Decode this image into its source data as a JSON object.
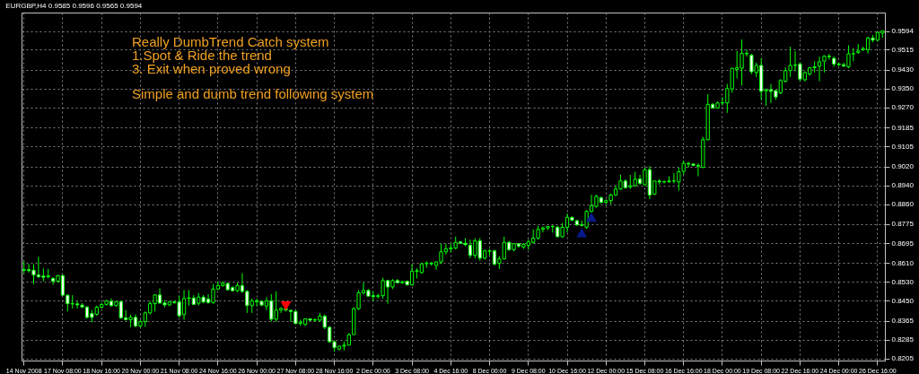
{
  "chart_data": {
    "type": "candlestick",
    "title": "EURGBP,H4  0.9585 0.9596 0.9565 0.9594",
    "color": "#00ff00",
    "annotations": [
      "Really DumbTrend Catch system",
      "1.Spot & Ride the trend",
      "3. Exit when proved wrong",
      "Simple and dumb trend following system"
    ],
    "categories": [
      "14 Nov 2008",
      null,
      null,
      null,
      null,
      null,
      null,
      null,
      "17 Nov 08:00",
      null,
      null,
      null,
      null,
      null,
      null,
      null,
      "18 Nov 16:00",
      null,
      null,
      null,
      null,
      null,
      null,
      null,
      "20 Nov 00:00",
      null,
      null,
      null,
      null,
      null,
      null,
      null,
      "21 Nov 08:00",
      null,
      null,
      null,
      null,
      null,
      null,
      null,
      "24 Nov 16:00",
      null,
      null,
      null,
      null,
      null,
      null,
      null,
      "26 Nov 00:00",
      null,
      null,
      null,
      null,
      null,
      null,
      null,
      "27 Nov 08:00",
      null,
      null,
      null,
      null,
      null,
      null,
      null,
      "28 Nov 16:00",
      null,
      null,
      null,
      null,
      null,
      null,
      null,
      "2 Dec 00:00",
      null,
      null,
      null,
      null,
      null,
      null,
      null,
      "3 Dec 08:00",
      null,
      null,
      null,
      null,
      null,
      null,
      null,
      "4 Dec 16:00",
      null,
      null,
      null,
      null,
      null,
      null,
      null,
      "8 Dec 00:00",
      null,
      null,
      null,
      null,
      null,
      null,
      null,
      "9 Dec 08:00",
      null,
      null,
      null,
      null,
      null,
      null,
      null,
      "10 Dec 16:00",
      null,
      null,
      null,
      null,
      null,
      null,
      null,
      "12 Dec 00:00",
      null,
      null,
      null,
      null,
      null,
      null,
      null,
      "15 Dec 08:00",
      null,
      null,
      null,
      null,
      null,
      null,
      null,
      "16 Dec 16:00",
      null,
      null,
      null,
      null,
      null,
      null,
      null,
      "18 Dec 00:00",
      null,
      null,
      null,
      null,
      null,
      null,
      null,
      "19 Dec 08:00",
      null,
      null,
      null,
      null,
      null,
      null,
      null,
      "22 Dec 16:00",
      null,
      null,
      null,
      null,
      null,
      null,
      null,
      "24 Dec 00:00",
      null,
      null,
      null,
      null,
      null,
      null,
      null,
      "26 Dec 16:00",
      null
    ],
    "ohlc": [
      [
        0.8582,
        0.8618,
        0.8567,
        0.858
      ],
      [
        0.8582,
        0.8606,
        0.857,
        0.8578
      ],
      [
        0.858,
        0.8606,
        0.8521,
        0.856
      ],
      [
        0.856,
        0.8637,
        0.8548,
        0.8552
      ],
      [
        0.8555,
        0.8588,
        0.8533,
        0.855
      ],
      [
        0.8552,
        0.8585,
        0.8545,
        0.8556
      ],
      [
        0.8545,
        0.8551,
        0.8518,
        0.8533
      ],
      [
        0.8533,
        0.856,
        0.8527,
        0.8557
      ],
      [
        0.8557,
        0.8561,
        0.8472,
        0.8474
      ],
      [
        0.8474,
        0.8478,
        0.8405,
        0.8438
      ],
      [
        0.8438,
        0.8474,
        0.8418,
        0.8437
      ],
      [
        0.8437,
        0.845,
        0.8418,
        0.8433
      ],
      [
        0.8432,
        0.844,
        0.842,
        0.8424
      ],
      [
        0.8424,
        0.8427,
        0.8374,
        0.838
      ],
      [
        0.8396,
        0.8411,
        0.8359,
        0.838
      ],
      [
        0.8393,
        0.843,
        0.8387,
        0.8423
      ],
      [
        0.8423,
        0.8442,
        0.8418,
        0.8435
      ],
      [
        0.8435,
        0.8454,
        0.843,
        0.845
      ],
      [
        0.8448,
        0.846,
        0.8425,
        0.843
      ],
      [
        0.843,
        0.8448,
        0.8425,
        0.8447
      ],
      [
        0.8447,
        0.845,
        0.8374,
        0.8378
      ],
      [
        0.8378,
        0.8411,
        0.8367,
        0.837
      ],
      [
        0.837,
        0.8392,
        0.8338,
        0.838
      ],
      [
        0.838,
        0.8392,
        0.8338,
        0.8344
      ],
      [
        0.8344,
        0.8369,
        0.8338,
        0.8362
      ],
      [
        0.8362,
        0.8405,
        0.834,
        0.8399
      ],
      [
        0.8399,
        0.8448,
        0.8393,
        0.8438
      ],
      [
        0.8438,
        0.8478,
        0.8405,
        0.8475
      ],
      [
        0.8475,
        0.8503,
        0.8438,
        0.8441
      ],
      [
        0.8441,
        0.8454,
        0.8423,
        0.8433
      ],
      [
        0.8433,
        0.845,
        0.8427,
        0.8445
      ],
      [
        0.8445,
        0.8452,
        0.8438,
        0.8442
      ],
      [
        0.8445,
        0.8472,
        0.838,
        0.8387
      ],
      [
        0.8392,
        0.8496,
        0.837,
        0.846
      ],
      [
        0.846,
        0.8496,
        0.843,
        0.8463
      ],
      [
        0.8462,
        0.8474,
        0.8433,
        0.8435
      ],
      [
        0.844,
        0.8484,
        0.843,
        0.8466
      ],
      [
        0.8466,
        0.8475,
        0.844,
        0.8445
      ],
      [
        0.8458,
        0.8478,
        0.8438,
        0.8443
      ],
      [
        0.8443,
        0.8521,
        0.8438,
        0.85
      ],
      [
        0.85,
        0.8533,
        0.8496,
        0.8515
      ],
      [
        0.8515,
        0.8533,
        0.8509,
        0.8524
      ],
      [
        0.8524,
        0.8527,
        0.8494,
        0.8497
      ],
      [
        0.8506,
        0.8512,
        0.849,
        0.8493
      ],
      [
        0.8493,
        0.8527,
        0.8487,
        0.8515
      ],
      [
        0.8515,
        0.8567,
        0.8484,
        0.849
      ],
      [
        0.849,
        0.8496,
        0.8399,
        0.843
      ],
      [
        0.843,
        0.846,
        0.8399,
        0.845
      ],
      [
        0.845,
        0.846,
        0.8427,
        0.8446
      ],
      [
        0.8448,
        0.8452,
        0.8428,
        0.8432
      ],
      [
        0.8428,
        0.8466,
        0.8411,
        0.845
      ],
      [
        0.845,
        0.8478,
        0.8362,
        0.8372
      ],
      [
        0.8372,
        0.849,
        0.8362,
        0.8411
      ],
      [
        0.8411,
        0.8423,
        0.8399,
        0.8418
      ],
      [
        0.8418,
        0.842,
        0.8405,
        0.8411
      ],
      [
        0.841,
        0.8411,
        0.8362,
        0.8405
      ],
      [
        0.8405,
        0.841,
        0.835,
        0.8354
      ],
      [
        0.8354,
        0.837,
        0.8344,
        0.836
      ],
      [
        0.835,
        0.8376,
        0.8344,
        0.8374
      ],
      [
        0.8374,
        0.8376,
        0.8365,
        0.8368
      ],
      [
        0.8368,
        0.8377,
        0.8362,
        0.837
      ],
      [
        0.8368,
        0.8399,
        0.8362,
        0.8385
      ],
      [
        0.8385,
        0.8392,
        0.833,
        0.8338
      ],
      [
        0.8338,
        0.8343,
        0.8271,
        0.8277
      ],
      [
        0.8277,
        0.8277,
        0.8234,
        0.8252
      ],
      [
        0.8246,
        0.8258,
        0.824,
        0.8258
      ],
      [
        0.8258,
        0.8277,
        0.824,
        0.8262
      ],
      [
        0.8262,
        0.8313,
        0.8262,
        0.8307
      ],
      [
        0.8307,
        0.8423,
        0.8307,
        0.8417
      ],
      [
        0.8417,
        0.8496,
        0.8411,
        0.8484
      ],
      [
        0.8484,
        0.8527,
        0.8478,
        0.8494
      ],
      [
        0.8494,
        0.85,
        0.847,
        0.847
      ],
      [
        0.8472,
        0.849,
        0.8448,
        0.8468
      ],
      [
        0.8468,
        0.848,
        0.846,
        0.8472
      ],
      [
        0.8472,
        0.8548,
        0.846,
        0.8536
      ],
      [
        0.8536,
        0.8539,
        0.8438,
        0.8509
      ],
      [
        0.8509,
        0.8542,
        0.85,
        0.8536
      ],
      [
        0.8536,
        0.8542,
        0.8524,
        0.8527
      ],
      [
        0.8527,
        0.8536,
        0.8521,
        0.853
      ],
      [
        0.8533,
        0.8536,
        0.8515,
        0.8518
      ],
      [
        0.8518,
        0.8606,
        0.8515,
        0.8575
      ],
      [
        0.8575,
        0.8588,
        0.8545,
        0.8578
      ],
      [
        0.857,
        0.861,
        0.8565,
        0.8607
      ],
      [
        0.8607,
        0.8618,
        0.859,
        0.861
      ],
      [
        0.861,
        0.8615,
        0.86,
        0.8607
      ],
      [
        0.86,
        0.8618,
        0.8582,
        0.8615
      ],
      [
        0.8615,
        0.8692,
        0.8606,
        0.8658
      ],
      [
        0.8658,
        0.8692,
        0.8646,
        0.867
      ],
      [
        0.867,
        0.8692,
        0.8655,
        0.8674
      ],
      [
        0.8674,
        0.8722,
        0.8668,
        0.8698
      ],
      [
        0.87,
        0.8704,
        0.8692,
        0.8694
      ],
      [
        0.8694,
        0.8716,
        0.8682,
        0.8688
      ],
      [
        0.8686,
        0.871,
        0.8631,
        0.8643
      ],
      [
        0.8643,
        0.8716,
        0.863,
        0.8704
      ],
      [
        0.8704,
        0.8716,
        0.862,
        0.8631
      ],
      [
        0.8631,
        0.8667,
        0.8625,
        0.8662
      ],
      [
        0.866,
        0.867,
        0.8643,
        0.8662
      ],
      [
        0.8662,
        0.8667,
        0.86,
        0.8606
      ],
      [
        0.8609,
        0.864,
        0.8585,
        0.8628
      ],
      [
        0.8628,
        0.8722,
        0.8625,
        0.8698
      ],
      [
        0.8698,
        0.8704,
        0.8662,
        0.8667
      ],
      [
        0.8667,
        0.8695,
        0.866,
        0.8692
      ],
      [
        0.8692,
        0.8695,
        0.8675,
        0.8682
      ],
      [
        0.8678,
        0.8695,
        0.867,
        0.8689
      ],
      [
        0.8685,
        0.871,
        0.8667,
        0.87
      ],
      [
        0.8698,
        0.8753,
        0.8692,
        0.8716
      ],
      [
        0.8716,
        0.8768,
        0.871,
        0.8753
      ],
      [
        0.8753,
        0.8765,
        0.874,
        0.8759
      ],
      [
        0.8759,
        0.8768,
        0.875,
        0.8765
      ],
      [
        0.8765,
        0.877,
        0.874,
        0.8766
      ],
      [
        0.8762,
        0.8768,
        0.872,
        0.8722
      ],
      [
        0.8722,
        0.878,
        0.8718,
        0.8762
      ],
      [
        0.8762,
        0.882,
        0.874,
        0.8804
      ],
      [
        0.8804,
        0.8808,
        0.8788,
        0.8792
      ],
      [
        0.879,
        0.8792,
        0.8768,
        0.8772
      ],
      [
        0.8772,
        0.879,
        0.8765,
        0.877
      ],
      [
        0.8762,
        0.8835,
        0.8755,
        0.8829
      ],
      [
        0.8829,
        0.89,
        0.8825,
        0.8853
      ],
      [
        0.885,
        0.89,
        0.8845,
        0.8893
      ],
      [
        0.8887,
        0.8893,
        0.8862,
        0.8868
      ],
      [
        0.8868,
        0.888,
        0.886,
        0.8875
      ],
      [
        0.8875,
        0.8905,
        0.886,
        0.8899
      ],
      [
        0.8899,
        0.894,
        0.8895,
        0.8924
      ],
      [
        0.8924,
        0.8985,
        0.892,
        0.8958
      ],
      [
        0.8958,
        0.8965,
        0.8925,
        0.893
      ],
      [
        0.8933,
        0.8984,
        0.8924,
        0.8938
      ],
      [
        0.8938,
        0.8997,
        0.8935,
        0.8966
      ],
      [
        0.8966,
        0.8984,
        0.8942,
        0.8948
      ],
      [
        0.8942,
        0.9015,
        0.894,
        0.9006
      ],
      [
        0.9006,
        0.9021,
        0.8881,
        0.8899
      ],
      [
        0.8902,
        0.896,
        0.8899,
        0.8958
      ],
      [
        0.8958,
        0.8966,
        0.8942,
        0.8954
      ],
      [
        0.8954,
        0.896,
        0.8948,
        0.8955
      ],
      [
        0.8955,
        0.8978,
        0.895,
        0.8958
      ],
      [
        0.8958,
        0.8991,
        0.8948,
        0.8958
      ],
      [
        0.8954,
        0.9015,
        0.8917,
        0.8997
      ],
      [
        0.8999,
        0.9045,
        0.8984,
        0.9033
      ],
      [
        0.9033,
        0.9039,
        0.9015,
        0.903
      ],
      [
        0.903,
        0.9033,
        0.9021,
        0.9024
      ],
      [
        0.9024,
        0.9033,
        0.8978,
        0.9021
      ],
      [
        0.9015,
        0.9145,
        0.9015,
        0.9133
      ],
      [
        0.9133,
        0.9326,
        0.9131,
        0.9283
      ],
      [
        0.9283,
        0.9289,
        0.9265,
        0.9267
      ],
      [
        0.9267,
        0.9295,
        0.9265,
        0.9289
      ],
      [
        0.9289,
        0.9314,
        0.9277,
        0.929
      ],
      [
        0.9289,
        0.9369,
        0.9247,
        0.935
      ],
      [
        0.9348,
        0.9436,
        0.9332,
        0.9436
      ],
      [
        0.9431,
        0.9509,
        0.9393,
        0.9438
      ],
      [
        0.9436,
        0.9558,
        0.9363,
        0.9499
      ],
      [
        0.9499,
        0.9515,
        0.9485,
        0.9497
      ],
      [
        0.9491,
        0.9497,
        0.9411,
        0.9421
      ],
      [
        0.9418,
        0.946,
        0.9399,
        0.9448
      ],
      [
        0.9448,
        0.9478,
        0.9302,
        0.9338
      ],
      [
        0.934,
        0.935,
        0.9277,
        0.9345
      ],
      [
        0.9345,
        0.9369,
        0.9289,
        0.9338
      ],
      [
        0.9341,
        0.9345,
        0.9302,
        0.9314
      ],
      [
        0.9332,
        0.939,
        0.9326,
        0.9384
      ],
      [
        0.9381,
        0.944,
        0.9375,
        0.9426
      ],
      [
        0.9426,
        0.9527,
        0.9399,
        0.9448
      ],
      [
        0.9448,
        0.9509,
        0.9423,
        0.945
      ],
      [
        0.9454,
        0.946,
        0.9381,
        0.939
      ],
      [
        0.9387,
        0.9423,
        0.938,
        0.9418
      ],
      [
        0.9411,
        0.9442,
        0.9405,
        0.9438
      ],
      [
        0.9438,
        0.9466,
        0.9418,
        0.9442
      ],
      [
        0.9445,
        0.9485,
        0.9381,
        0.9463
      ],
      [
        0.9466,
        0.9491,
        0.9418,
        0.9487
      ],
      [
        0.9487,
        0.9497,
        0.9472,
        0.9485
      ],
      [
        0.9478,
        0.9485,
        0.9442,
        0.9454
      ],
      [
        0.9454,
        0.946,
        0.9445,
        0.9451
      ],
      [
        0.9451,
        0.946,
        0.9442,
        0.9445
      ],
      [
        0.9442,
        0.9533,
        0.9436,
        0.9497
      ],
      [
        0.9497,
        0.9521,
        0.9466,
        0.9497
      ],
      [
        0.9503,
        0.9539,
        0.9497,
        0.9509
      ],
      [
        0.9515,
        0.9527,
        0.9509,
        0.9519
      ],
      [
        0.9515,
        0.957,
        0.9499,
        0.9564
      ],
      [
        0.9564,
        0.9576,
        0.9546,
        0.9555
      ],
      [
        0.9555,
        0.9592,
        0.9552,
        0.9588
      ],
      [
        0.9585,
        0.9596,
        0.9565,
        0.9594
      ]
    ],
    "series": [
      {
        "type": "scatter",
        "color": "#ff0000",
        "values": [
          null,
          null,
          null,
          null,
          null,
          null,
          null,
          null,
          null,
          null,
          null,
          null,
          null,
          null,
          null,
          null,
          null,
          null,
          null,
          null,
          null,
          null,
          null,
          null,
          null,
          null,
          null,
          null,
          null,
          null,
          null,
          null,
          null,
          null,
          null,
          null,
          null,
          null,
          null,
          null,
          null,
          null,
          null,
          null,
          null,
          null,
          null,
          null,
          null,
          null,
          null,
          null,
          null,
          null,
          0.8428,
          null,
          null,
          null,
          null,
          null,
          null,
          null,
          null,
          null,
          null,
          null,
          null,
          null,
          null,
          null,
          null,
          null,
          null,
          null,
          null,
          null,
          null,
          null,
          null,
          null,
          null,
          null,
          null,
          null,
          null,
          null,
          null,
          null,
          null,
          null,
          null,
          null,
          null,
          null,
          null,
          null,
          null,
          null,
          null,
          null,
          null,
          null,
          null,
          null,
          null,
          null,
          null,
          null,
          null,
          null,
          null,
          null,
          null,
          null,
          null,
          null,
          null,
          null,
          null,
          null,
          null,
          null,
          null,
          null,
          null,
          null,
          null,
          null,
          null,
          null,
          null,
          null,
          null,
          null,
          null,
          null,
          null,
          null,
          null,
          null,
          null,
          null,
          null,
          null,
          null,
          null,
          null,
          null,
          null,
          null,
          null,
          null,
          null,
          null,
          null,
          null,
          null,
          null,
          null,
          null,
          null,
          null,
          null,
          null,
          null,
          null,
          null,
          null,
          null,
          null,
          null,
          null,
          null,
          null,
          null,
          null,
          null,
          null
        ]
      },
      {
        "type": "scatter",
        "color": "#0a1a8c",
        "values": [
          null,
          null,
          null,
          null,
          null,
          null,
          null,
          null,
          null,
          null,
          null,
          null,
          null,
          null,
          null,
          null,
          null,
          null,
          null,
          null,
          null,
          null,
          null,
          null,
          null,
          null,
          null,
          null,
          null,
          null,
          null,
          null,
          null,
          null,
          null,
          null,
          null,
          null,
          null,
          null,
          null,
          null,
          null,
          null,
          null,
          null,
          null,
          null,
          null,
          null,
          null,
          null,
          null,
          null,
          null,
          null,
          null,
          null,
          null,
          null,
          null,
          null,
          null,
          null,
          null,
          null,
          null,
          null,
          null,
          null,
          null,
          null,
          null,
          null,
          null,
          null,
          null,
          null,
          null,
          null,
          null,
          null,
          null,
          null,
          null,
          null,
          null,
          null,
          null,
          null,
          null,
          null,
          null,
          null,
          null,
          null,
          null,
          null,
          null,
          null,
          null,
          null,
          null,
          null,
          null,
          null,
          null,
          null,
          null,
          null,
          null,
          null,
          null,
          null,
          null,
          0.8739,
          null,
          0.8805,
          null,
          null,
          null,
          null,
          null,
          null,
          null,
          null,
          null,
          null,
          null,
          null,
          null,
          null,
          null,
          null,
          null,
          null,
          null,
          null,
          null,
          null,
          null,
          null,
          null,
          null,
          null,
          null,
          null,
          null,
          null,
          null,
          null,
          null,
          null,
          null,
          null,
          null,
          null,
          null,
          null,
          null,
          null,
          null,
          null,
          null,
          null,
          null,
          null,
          null,
          null,
          null,
          null,
          null,
          null,
          null,
          null,
          null,
          null,
          null
        ]
      }
    ],
    "marker": "triangle",
    "ylim": [
      0.8197,
      0.9672
    ],
    "yticks": [
      0.8205,
      0.8285,
      0.8365,
      {
        "value": 0.845,
        "label": "0.8450"
      },
      {
        "value": 0.853,
        "label": "0.8530"
      },
      {
        "value": 0.861,
        "label": "0.8610"
      },
      0.8695,
      0.8775,
      {
        "value": 0.886,
        "label": "0.8860"
      },
      {
        "value": 0.894,
        "label": "0.8940"
      },
      {
        "value": 0.902,
        "label": "0.9020"
      },
      0.9105,
      0.9185,
      {
        "value": 0.927,
        "label": "0.9270"
      },
      {
        "value": 0.935,
        "label": "0.9350"
      },
      {
        "value": 0.943,
        "label": "0.9430"
      },
      0.9515,
      0.9594
    ],
    "grid": true
  }
}
